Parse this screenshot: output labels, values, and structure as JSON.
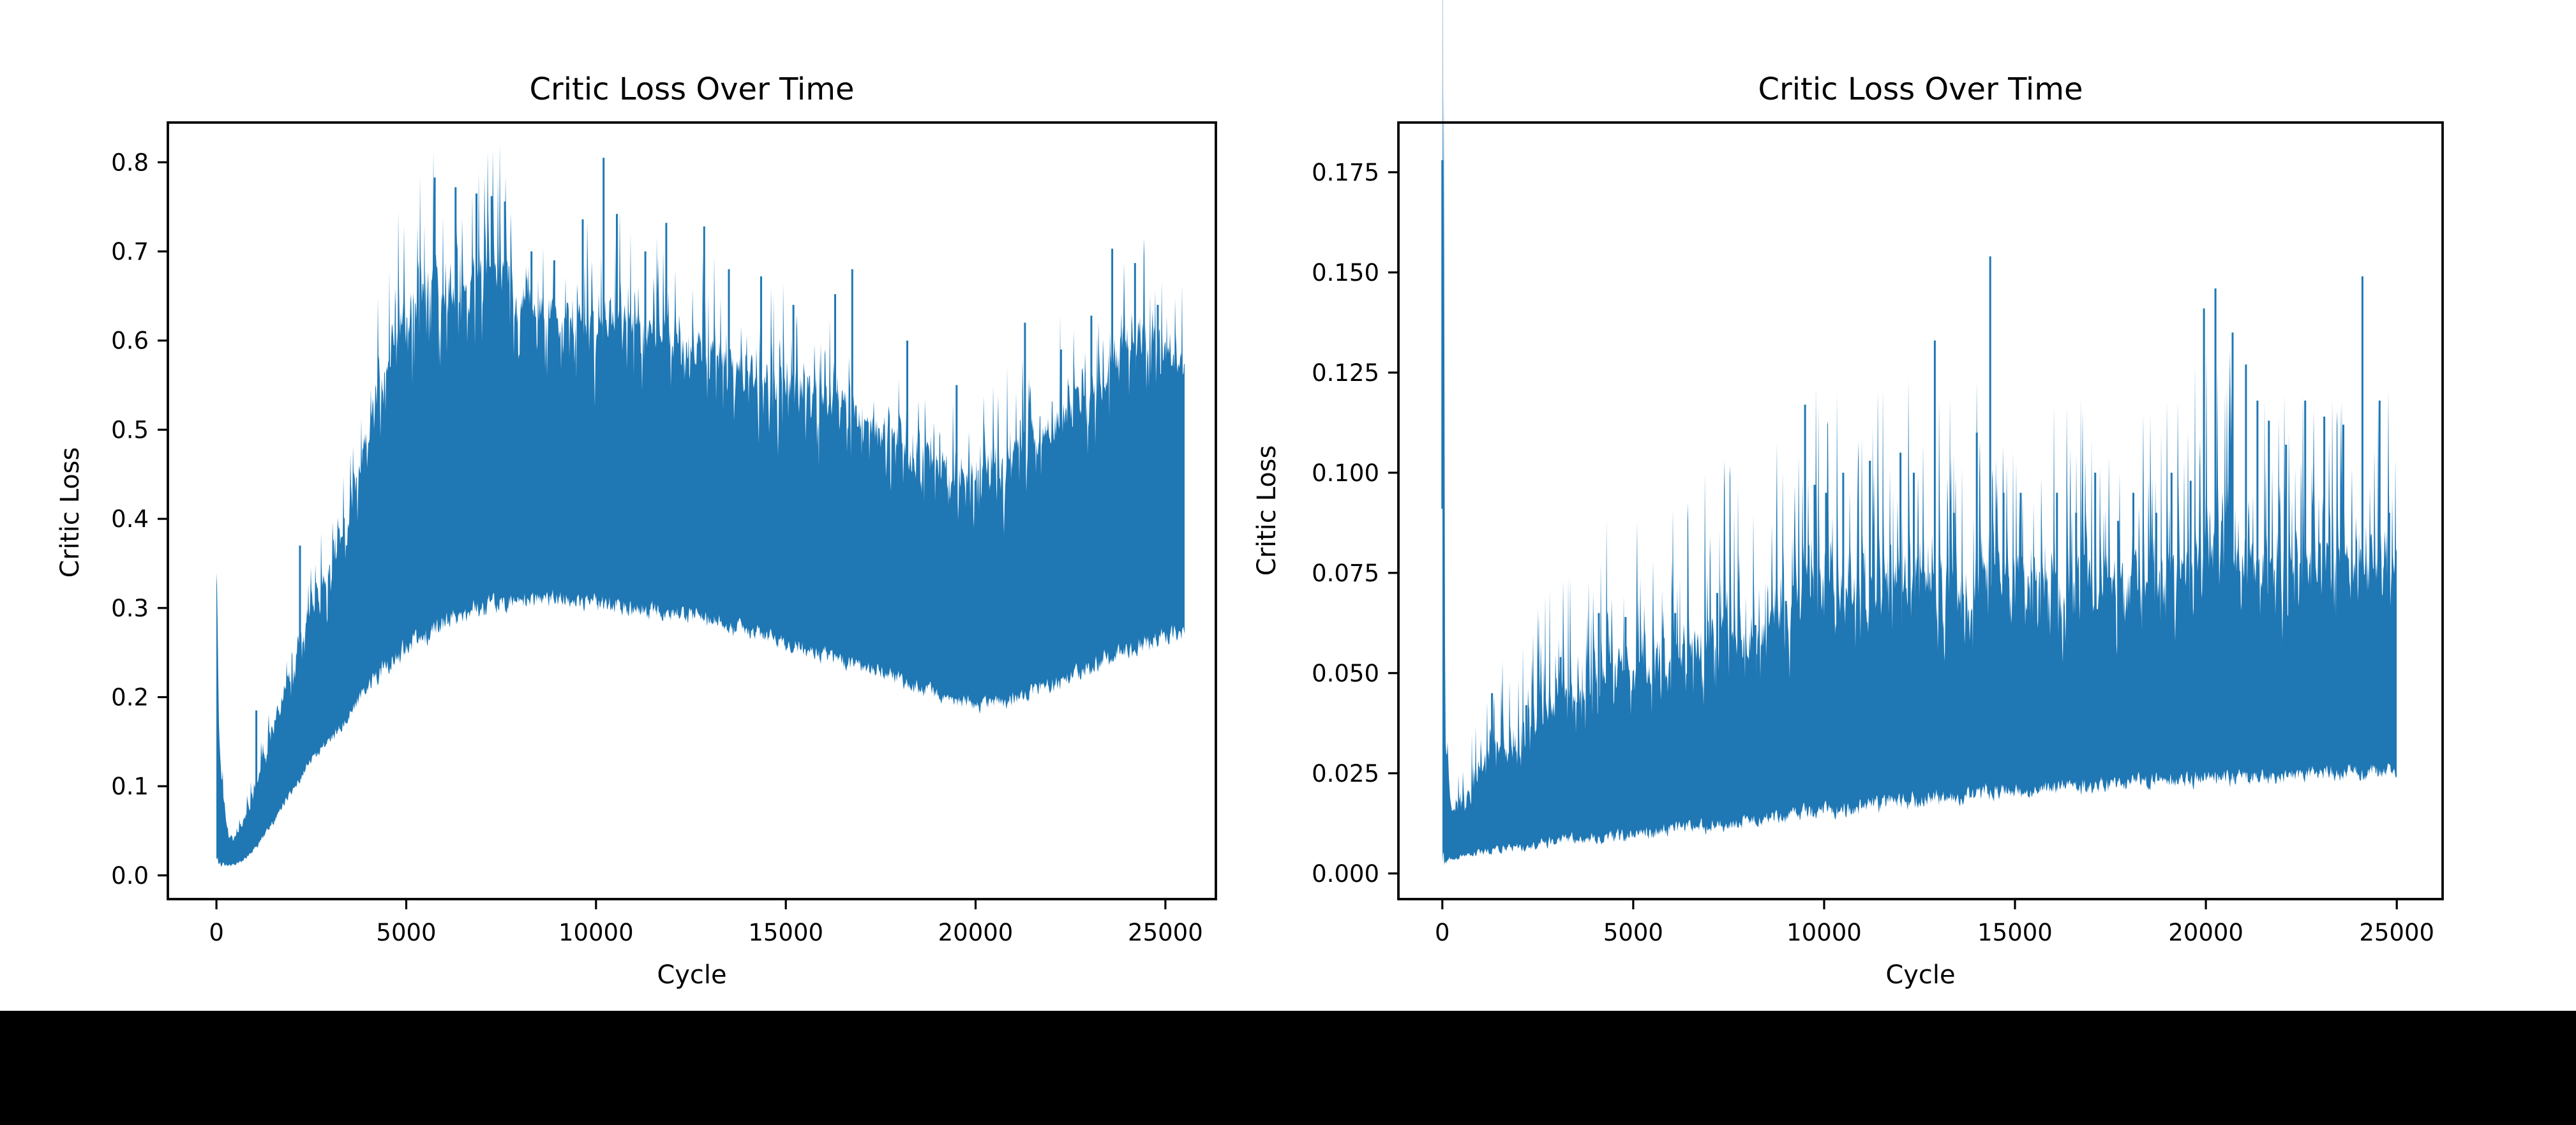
{
  "figure": {
    "background": "#ffffff",
    "bottom_bar_color": "#000000",
    "text_color": "#000000"
  },
  "chart_data": [
    {
      "type": "line",
      "title": "Critic Loss Over Time",
      "xlabel": "Cycle",
      "ylabel": "Critic Loss",
      "line_color": "#1f77b4",
      "grid": false,
      "legend": null,
      "xlim": [
        -1280,
        26330
      ],
      "ylim": [
        -0.0266,
        0.8446
      ],
      "xticks": [
        0,
        5000,
        10000,
        15000,
        20000,
        25000
      ],
      "xtick_labels": [
        "0",
        "5000",
        "10000",
        "15000",
        "20000",
        "25000"
      ],
      "yticks": [
        0.0,
        0.1,
        0.2,
        0.3,
        0.4,
        0.5,
        0.6,
        0.7,
        0.8
      ],
      "ytick_labels": [
        "0.0",
        "0.1",
        "0.2",
        "0.3",
        "0.4",
        "0.5",
        "0.6",
        "0.7",
        "0.8"
      ],
      "series_name": "critic_loss",
      "description": "Dense noisy training-loss band: starts at 0.335, dips to ~0.013 near cycle 400, rises to a broad noisy band (0.28-0.68) peaking near cycle 5000-10000 with max spike 0.805 at ~10200, slowly declines to lower bound ~0.19 near cycle 19600, then rises again toward 0.27-0.6 by cycle 25000.",
      "envelope": [
        [
          0,
          0.018,
          0.335
        ],
        [
          60,
          0.014,
          0.14
        ],
        [
          250,
          0.012,
          0.055
        ],
        [
          450,
          0.012,
          0.038
        ],
        [
          650,
          0.016,
          0.052
        ],
        [
          900,
          0.026,
          0.085
        ],
        [
          1200,
          0.042,
          0.125
        ],
        [
          1500,
          0.062,
          0.165
        ],
        [
          1800,
          0.085,
          0.21
        ],
        [
          2100,
          0.105,
          0.25
        ],
        [
          2400,
          0.125,
          0.29
        ],
        [
          2700,
          0.14,
          0.315
        ],
        [
          3000,
          0.155,
          0.34
        ],
        [
          3300,
          0.17,
          0.37
        ],
        [
          3600,
          0.19,
          0.415
        ],
        [
          3900,
          0.21,
          0.48
        ],
        [
          4200,
          0.225,
          0.53
        ],
        [
          4500,
          0.24,
          0.58
        ],
        [
          4800,
          0.252,
          0.61
        ],
        [
          5100,
          0.262,
          0.625
        ],
        [
          5400,
          0.27,
          0.64
        ],
        [
          5700,
          0.278,
          0.655
        ],
        [
          6000,
          0.285,
          0.665
        ],
        [
          6300,
          0.29,
          0.655
        ],
        [
          6600,
          0.296,
          0.65
        ],
        [
          6900,
          0.3,
          0.67
        ],
        [
          7200,
          0.305,
          0.675
        ],
        [
          7500,
          0.308,
          0.67
        ],
        [
          7800,
          0.31,
          0.655
        ],
        [
          8100,
          0.312,
          0.645
        ],
        [
          8400,
          0.313,
          0.625
        ],
        [
          8700,
          0.314,
          0.63
        ],
        [
          9000,
          0.314,
          0.62
        ],
        [
          9300,
          0.312,
          0.625
        ],
        [
          9600,
          0.31,
          0.62
        ],
        [
          9900,
          0.308,
          0.615
        ],
        [
          10200,
          0.306,
          0.625
        ],
        [
          10500,
          0.304,
          0.62
        ],
        [
          10800,
          0.302,
          0.615
        ],
        [
          11200,
          0.3,
          0.615
        ],
        [
          11600,
          0.299,
          0.61
        ],
        [
          12000,
          0.297,
          0.6
        ],
        [
          12400,
          0.294,
          0.595
        ],
        [
          12800,
          0.29,
          0.585
        ],
        [
          13200,
          0.286,
          0.575
        ],
        [
          13600,
          0.281,
          0.565
        ],
        [
          14000,
          0.276,
          0.56
        ],
        [
          14400,
          0.27,
          0.55
        ],
        [
          14800,
          0.265,
          0.548
        ],
        [
          15200,
          0.259,
          0.545
        ],
        [
          15600,
          0.253,
          0.54
        ],
        [
          16000,
          0.248,
          0.52
        ],
        [
          16400,
          0.243,
          0.53
        ],
        [
          16800,
          0.237,
          0.51
        ],
        [
          17200,
          0.232,
          0.5
        ],
        [
          17600,
          0.227,
          0.49
        ],
        [
          18000,
          0.221,
          0.48
        ],
        [
          18400,
          0.214,
          0.465
        ],
        [
          18800,
          0.208,
          0.463
        ],
        [
          19200,
          0.201,
          0.455
        ],
        [
          19600,
          0.195,
          0.45
        ],
        [
          20000,
          0.192,
          0.46
        ],
        [
          20400,
          0.194,
          0.455
        ],
        [
          20800,
          0.198,
          0.465
        ],
        [
          21200,
          0.203,
          0.475
        ],
        [
          21600,
          0.21,
          0.49
        ],
        [
          22000,
          0.216,
          0.5
        ],
        [
          22400,
          0.224,
          0.515
        ],
        [
          22800,
          0.232,
          0.535
        ],
        [
          23200,
          0.24,
          0.55
        ],
        [
          23600,
          0.248,
          0.575
        ],
        [
          24000,
          0.256,
          0.595
        ],
        [
          24400,
          0.262,
          0.605
        ],
        [
          24800,
          0.268,
          0.59
        ],
        [
          25200,
          0.273,
          0.57
        ],
        [
          25500,
          0.275,
          0.555
        ]
      ],
      "spikes": [
        [
          1050,
          0.185
        ],
        [
          2200,
          0.37
        ],
        [
          5750,
          0.783
        ],
        [
          6300,
          0.772
        ],
        [
          6850,
          0.765
        ],
        [
          7250,
          0.762
        ],
        [
          7600,
          0.756
        ],
        [
          8300,
          0.7
        ],
        [
          8900,
          0.69
        ],
        [
          9650,
          0.736
        ],
        [
          10200,
          0.805
        ],
        [
          10550,
          0.742
        ],
        [
          11300,
          0.7
        ],
        [
          11850,
          0.732
        ],
        [
          12850,
          0.728
        ],
        [
          13500,
          0.68
        ],
        [
          14350,
          0.672
        ],
        [
          15200,
          0.64
        ],
        [
          16300,
          0.652
        ],
        [
          16750,
          0.68
        ],
        [
          18200,
          0.6
        ],
        [
          19500,
          0.55
        ],
        [
          21300,
          0.62
        ],
        [
          22250,
          0.59
        ],
        [
          23050,
          0.628
        ],
        [
          23600,
          0.703
        ],
        [
          24200,
          0.687
        ],
        [
          24800,
          0.64
        ]
      ]
    },
    {
      "type": "line",
      "title": "Critic Loss Over Time",
      "xlabel": "Cycle",
      "ylabel": "Critic Loss",
      "line_color": "#1f77b4",
      "grid": false,
      "legend": null,
      "xlim": [
        -1150,
        26200
      ],
      "ylim": [
        -0.0064,
        0.1874
      ],
      "xticks": [
        0,
        5000,
        10000,
        15000,
        20000,
        25000
      ],
      "xtick_labels": [
        "0",
        "5000",
        "10000",
        "15000",
        "20000",
        "25000"
      ],
      "yticks": [
        0.0,
        0.025,
        0.05,
        0.075,
        0.1,
        0.125,
        0.15,
        0.175
      ],
      "ytick_labels": [
        "0.000",
        "0.025",
        "0.050",
        "0.075",
        "0.100",
        "0.125",
        "0.150",
        "0.175"
      ],
      "series_name": "critic_loss",
      "description": "Noisy training-loss band: initial spike to 0.178 at cycle 0, drops to ~0.004, lower bound slowly climbs to ~0.026 by cycle 25000 while the noisy upper region grows to 0.07-0.08 with tall spikes 0.117 (~9500), 0.133 (~12900), 0.154 (~14350), 0.146 (~20250), 0.149 (~24100).",
      "envelope": [
        [
          0,
          0.004,
          0.178
        ],
        [
          80,
          0.004,
          0.03
        ],
        [
          250,
          0.0035,
          0.015
        ],
        [
          500,
          0.0045,
          0.017
        ],
        [
          800,
          0.005,
          0.021
        ],
        [
          1100,
          0.0055,
          0.027
        ],
        [
          1400,
          0.006,
          0.031
        ],
        [
          1700,
          0.0065,
          0.03
        ],
        [
          2000,
          0.007,
          0.033
        ],
        [
          2400,
          0.0075,
          0.037
        ],
        [
          2800,
          0.008,
          0.04
        ],
        [
          3200,
          0.0085,
          0.042
        ],
        [
          3600,
          0.009,
          0.044
        ],
        [
          4000,
          0.009,
          0.047
        ],
        [
          4400,
          0.0095,
          0.05
        ],
        [
          4800,
          0.01,
          0.053
        ],
        [
          5200,
          0.0102,
          0.05
        ],
        [
          5600,
          0.0105,
          0.052
        ],
        [
          6000,
          0.011,
          0.055
        ],
        [
          6400,
          0.0115,
          0.054
        ],
        [
          6800,
          0.012,
          0.057
        ],
        [
          7200,
          0.0125,
          0.06
        ],
        [
          7600,
          0.013,
          0.058
        ],
        [
          8000,
          0.0135,
          0.057
        ],
        [
          8400,
          0.014,
          0.06
        ],
        [
          8800,
          0.0145,
          0.062
        ],
        [
          9200,
          0.015,
          0.067
        ],
        [
          9600,
          0.0155,
          0.073
        ],
        [
          10000,
          0.016,
          0.07
        ],
        [
          10400,
          0.0165,
          0.071
        ],
        [
          10800,
          0.017,
          0.07
        ],
        [
          11200,
          0.0175,
          0.072
        ],
        [
          11600,
          0.018,
          0.073
        ],
        [
          12000,
          0.0185,
          0.074
        ],
        [
          12400,
          0.019,
          0.072
        ],
        [
          12800,
          0.019,
          0.073
        ],
        [
          13200,
          0.0195,
          0.071
        ],
        [
          13600,
          0.0198,
          0.07
        ],
        [
          14000,
          0.0202,
          0.073
        ],
        [
          14400,
          0.0207,
          0.075
        ],
        [
          14800,
          0.021,
          0.074
        ],
        [
          15200,
          0.0212,
          0.073
        ],
        [
          15600,
          0.0215,
          0.071
        ],
        [
          16000,
          0.0218,
          0.07
        ],
        [
          16400,
          0.022,
          0.072
        ],
        [
          16800,
          0.0222,
          0.074
        ],
        [
          17200,
          0.0225,
          0.073
        ],
        [
          17600,
          0.0227,
          0.07
        ],
        [
          18000,
          0.023,
          0.073
        ],
        [
          18400,
          0.0231,
          0.07
        ],
        [
          18800,
          0.0233,
          0.072
        ],
        [
          19200,
          0.0235,
          0.074
        ],
        [
          19600,
          0.0237,
          0.075
        ],
        [
          20000,
          0.024,
          0.078
        ],
        [
          20400,
          0.0241,
          0.079
        ],
        [
          20800,
          0.0243,
          0.078
        ],
        [
          21200,
          0.0245,
          0.077
        ],
        [
          21600,
          0.0246,
          0.075
        ],
        [
          22000,
          0.0248,
          0.075
        ],
        [
          22400,
          0.025,
          0.077
        ],
        [
          22800,
          0.025,
          0.077
        ],
        [
          23200,
          0.0252,
          0.077
        ],
        [
          23600,
          0.0253,
          0.077
        ],
        [
          24000,
          0.0254,
          0.079
        ],
        [
          24400,
          0.0256,
          0.078
        ],
        [
          24800,
          0.0257,
          0.075
        ],
        [
          25000,
          0.0258,
          0.072
        ]
      ],
      "spikes": [
        [
          0,
          0.178
        ],
        [
          1300,
          0.045
        ],
        [
          2200,
          0.042
        ],
        [
          3100,
          0.054
        ],
        [
          4100,
          0.065
        ],
        [
          4800,
          0.064
        ],
        [
          5300,
          0.056
        ],
        [
          6100,
          0.065
        ],
        [
          7200,
          0.07
        ],
        [
          8200,
          0.062
        ],
        [
          9000,
          0.068
        ],
        [
          9500,
          0.117
        ],
        [
          9750,
          0.097
        ],
        [
          10050,
          0.095
        ],
        [
          10500,
          0.1
        ],
        [
          11200,
          0.103
        ],
        [
          12000,
          0.105
        ],
        [
          12350,
          0.1
        ],
        [
          12900,
          0.133
        ],
        [
          13400,
          0.09
        ],
        [
          14000,
          0.11
        ],
        [
          14350,
          0.154
        ],
        [
          14700,
          0.095
        ],
        [
          15150,
          0.095
        ],
        [
          16100,
          0.095
        ],
        [
          16600,
          0.09
        ],
        [
          17100,
          0.1
        ],
        [
          17700,
          0.088
        ],
        [
          18100,
          0.095
        ],
        [
          18700,
          0.09
        ],
        [
          19100,
          0.1
        ],
        [
          19600,
          0.098
        ],
        [
          19950,
          0.141
        ],
        [
          20250,
          0.146
        ],
        [
          20700,
          0.135
        ],
        [
          21050,
          0.127
        ],
        [
          21350,
          0.118
        ],
        [
          21650,
          0.113
        ],
        [
          22100,
          0.107
        ],
        [
          22600,
          0.118
        ],
        [
          23100,
          0.114
        ],
        [
          23600,
          0.112
        ],
        [
          24100,
          0.149
        ],
        [
          24550,
          0.118
        ],
        [
          24800,
          0.09
        ]
      ]
    }
  ]
}
